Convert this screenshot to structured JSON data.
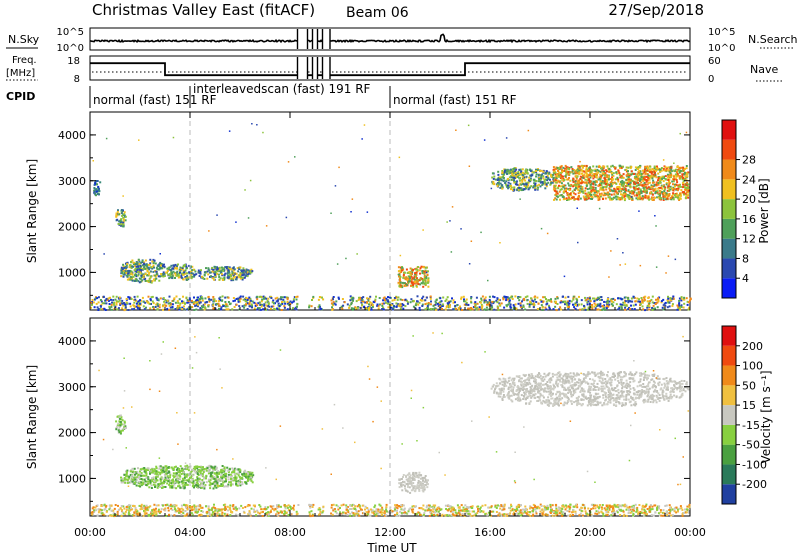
{
  "header": {
    "title": "Christmas Valley East (fitACF)",
    "beam": "Beam 06",
    "date": "27/Sep/2018"
  },
  "mini_panels": {
    "nsky": {
      "label": "N.Sky",
      "left_ticks": [
        "10^5",
        "10^0"
      ],
      "right_ticks": [
        "10^5",
        "10^0"
      ],
      "right_label": "N.Search"
    },
    "freq": {
      "label_line1": "Freq.",
      "label_line2": "[MHz]",
      "left_ticks": [
        "18",
        "8"
      ],
      "right_ticks": [
        "60",
        "0"
      ],
      "right_label": "Nave"
    },
    "cpid": {
      "label": "CPID",
      "segments": [
        {
          "text": "normal (fast) 151 RF",
          "start_hour": 0
        },
        {
          "text": "interleavedscan (fast) 191 RF",
          "start_hour": 4
        },
        {
          "text": "normal (fast) 151 RF",
          "start_hour": 12
        }
      ]
    }
  },
  "colorbars": {
    "power": {
      "label": "Power [dB]",
      "ticks": [
        "4",
        "8",
        "12",
        "16",
        "20",
        "24",
        "28"
      ],
      "colors": [
        "#0a1cf5",
        "#2a48b0",
        "#3a7a8a",
        "#4fa05a",
        "#8cc33c",
        "#f0c020",
        "#f08a1a",
        "#f04a10",
        "#e01010"
      ]
    },
    "velocity": {
      "label": "Velocity [m s⁻¹]",
      "ticks": [
        "200",
        "100",
        "50",
        "15",
        "-15",
        "-50",
        "-100",
        "-200"
      ],
      "colors": [
        "#2040a0",
        "#2a7a5a",
        "#4aa040",
        "#88d040",
        "#c8c8c0",
        "#f0c040",
        "#f08a1a",
        "#f04a10",
        "#e01010"
      ]
    }
  },
  "axes": {
    "ylabel": "Slant Range [km]",
    "yticks": [
      "1000",
      "2000",
      "3000",
      "4000"
    ],
    "xticks": [
      "00:00",
      "04:00",
      "08:00",
      "12:00",
      "16:00",
      "20:00",
      "00:00"
    ],
    "xlabel": "Time UT"
  },
  "chart_data": {
    "type": "heatmap",
    "x_unit": "hour UT",
    "y_unit": "slant range km",
    "xlim": [
      0,
      24
    ],
    "ylim": [
      180,
      4500
    ],
    "power_patches": [
      {
        "x0": 0.1,
        "x1": 0.4,
        "y0": 2700,
        "y1": 3050,
        "level": "blue"
      },
      {
        "x0": 1.0,
        "x1": 1.4,
        "y0": 2000,
        "y1": 2400,
        "level": "green"
      },
      {
        "x0": 1.2,
        "x1": 3.0,
        "y0": 800,
        "y1": 1300,
        "level": "green"
      },
      {
        "x0": 3.0,
        "x1": 4.2,
        "y0": 850,
        "y1": 1200,
        "level": "green"
      },
      {
        "x0": 4.2,
        "x1": 6.5,
        "y0": 850,
        "y1": 1150,
        "level": "green"
      },
      {
        "x0": 12.3,
        "x1": 13.5,
        "y0": 700,
        "y1": 1150,
        "level": "orange"
      },
      {
        "x0": 16.0,
        "x1": 18.5,
        "y0": 2800,
        "y1": 3300,
        "level": "green"
      },
      {
        "x0": 18.5,
        "x1": 23.9,
        "y0": 2600,
        "y1": 3350,
        "level": "orange"
      },
      {
        "x0": 0.0,
        "x1": 24.0,
        "y0": 200,
        "y1": 500,
        "level": "mixed"
      }
    ],
    "velocity_patches": [
      {
        "x0": 1.0,
        "x1": 1.4,
        "y0": 2000,
        "y1": 2400,
        "level": "green"
      },
      {
        "x0": 1.2,
        "x1": 6.5,
        "y0": 800,
        "y1": 1300,
        "level": "green"
      },
      {
        "x0": 12.3,
        "x1": 13.5,
        "y0": 700,
        "y1": 1150,
        "level": "grey"
      },
      {
        "x0": 16.0,
        "x1": 23.9,
        "y0": 2600,
        "y1": 3350,
        "level": "grey"
      },
      {
        "x0": 0.0,
        "x1": 24.0,
        "y0": 200,
        "y1": 450,
        "level": "orange"
      }
    ],
    "data_gaps": [
      [
        8.3,
        8.7
      ],
      [
        8.9,
        9.1
      ],
      [
        9.3,
        9.6
      ]
    ],
    "nsky_level": "near 10^1",
    "freq_steps": [
      {
        "x0": 0,
        "x1": 3,
        "mhz": 15
      },
      {
        "x0": 3,
        "x1": 15,
        "mhz": 10
      },
      {
        "x0": 15,
        "x1": 24,
        "mhz": 15
      }
    ],
    "vertical_markers": [
      4,
      12
    ]
  }
}
